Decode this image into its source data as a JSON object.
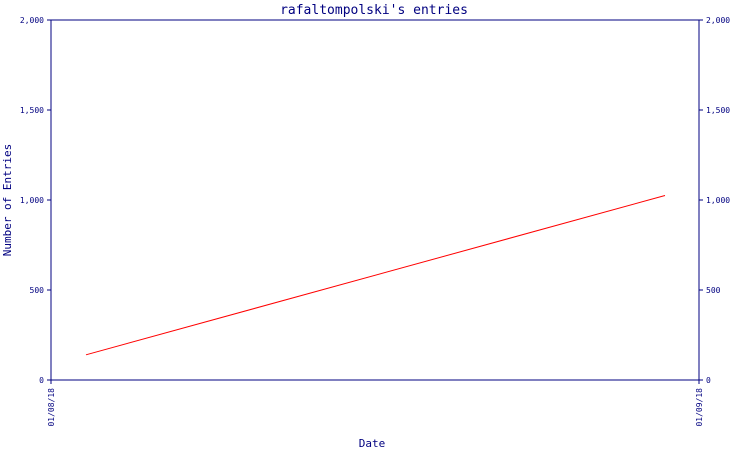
{
  "chart_data": {
    "type": "line",
    "title": "rafaltompolski's entries",
    "xlabel": "Date",
    "ylabel": "Number of Entries",
    "x_ticks": [
      "01/08/18",
      "01/09/18"
    ],
    "y_ticks": [
      0,
      500,
      1000,
      1500,
      2000
    ],
    "y_tick_labels": [
      "0",
      "500",
      "1,000",
      "1,500",
      "2,000"
    ],
    "ylim": [
      0,
      2000
    ],
    "grid": false,
    "series": [
      {
        "color": "#ff0000",
        "points": [
          {
            "x": "01/08/18",
            "y": 140
          },
          {
            "x": "01/09/18",
            "y": 1025
          }
        ]
      }
    ],
    "colors": {
      "frame": "#000080",
      "text": "#000080",
      "line": "#ff0000",
      "background": "#ffffff"
    }
  }
}
